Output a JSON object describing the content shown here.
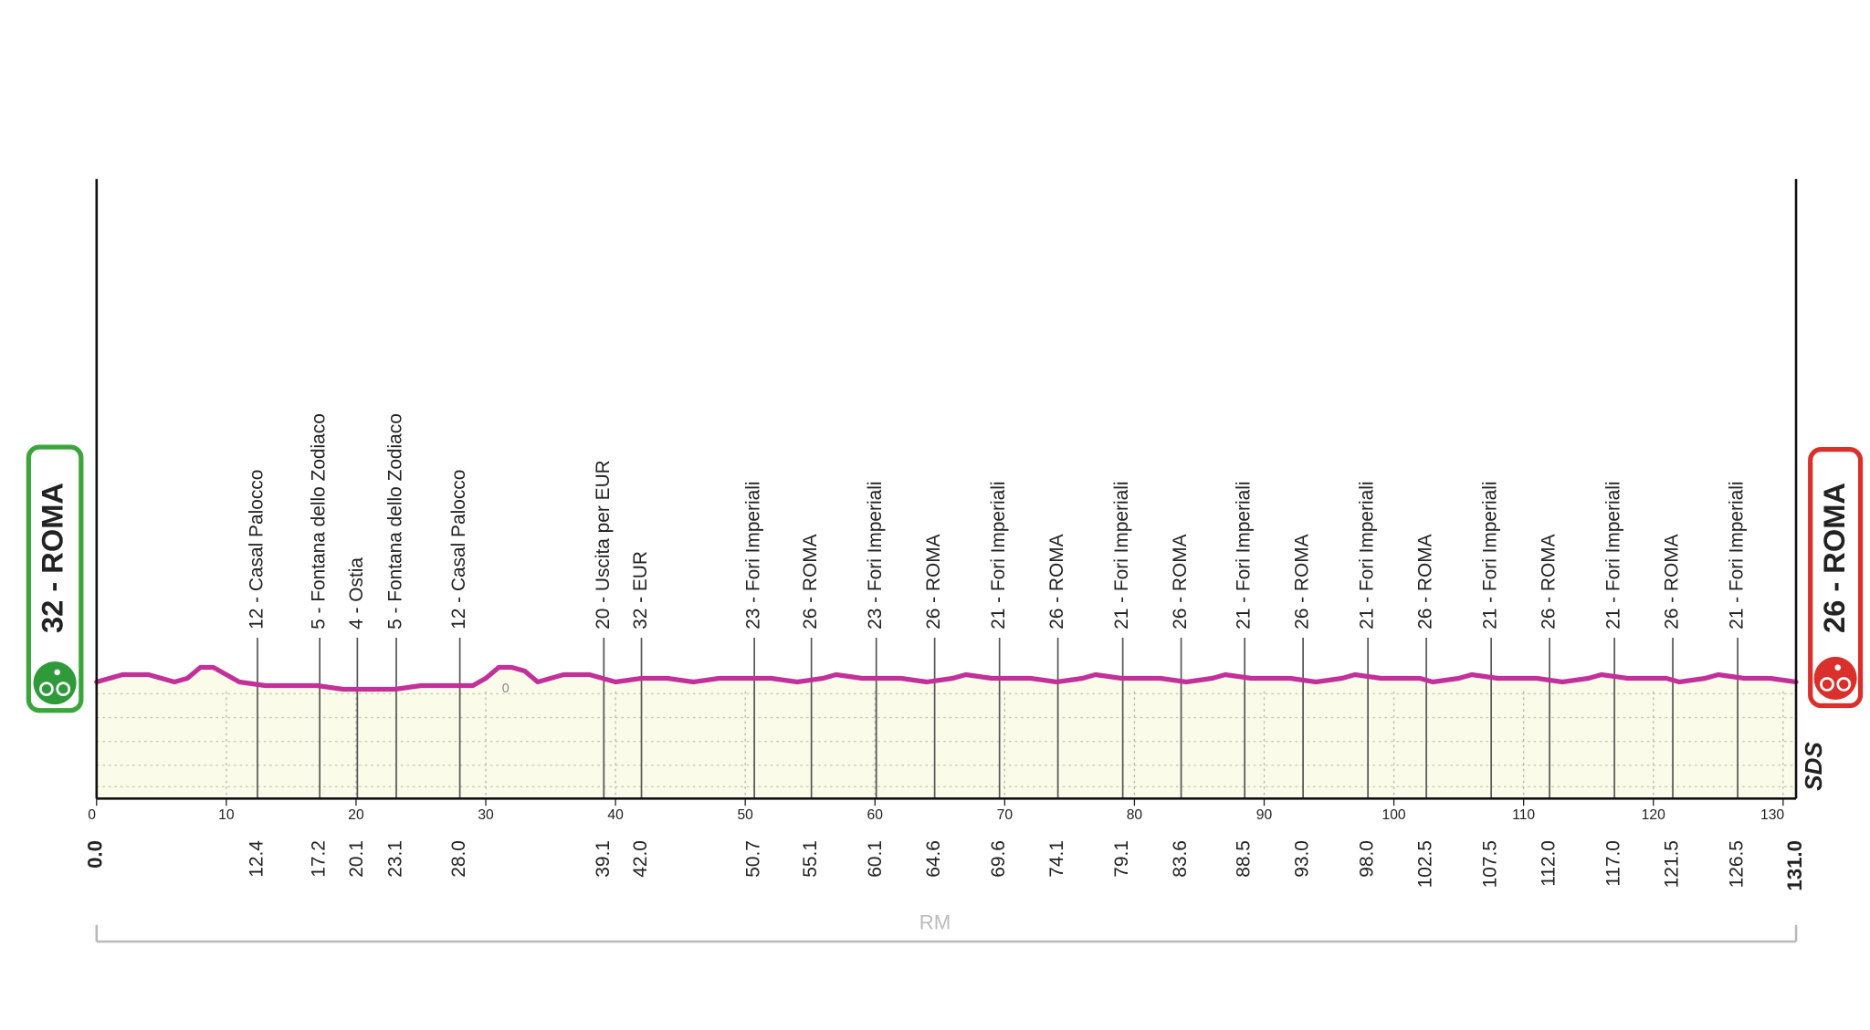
{
  "chart_data": {
    "type": "area",
    "color": "#c2309a",
    "fill_color": "#fbfbea",
    "xlim": [
      0,
      131
    ],
    "ylim": [
      0,
      170
    ],
    "xticks": [
      0,
      10,
      20,
      30,
      40,
      50,
      60,
      70,
      80,
      90,
      100,
      110,
      120,
      130
    ],
    "x": [
      0,
      2,
      4,
      6,
      7,
      8,
      9,
      10,
      11,
      13,
      15,
      17,
      19,
      21,
      23,
      25,
      27,
      29,
      30,
      31,
      32,
      33,
      34,
      35,
      36,
      38,
      39,
      40,
      42,
      44,
      46,
      48,
      50,
      52,
      54,
      56,
      57,
      59,
      62,
      64,
      66,
      67,
      69,
      72,
      74,
      76,
      77,
      79,
      82,
      84,
      86,
      87,
      89,
      92,
      94,
      96,
      97,
      99,
      102,
      103,
      105,
      106,
      108,
      111,
      113,
      115,
      116,
      118,
      121,
      122,
      124,
      125,
      127,
      129,
      131
    ],
    "values": [
      32,
      34,
      34,
      32,
      33,
      36,
      36,
      34,
      32,
      31,
      31,
      31,
      30,
      30,
      30,
      31,
      31,
      31,
      33,
      36,
      36,
      35,
      32,
      33,
      34,
      34,
      33,
      32,
      33,
      33,
      32,
      33,
      33,
      33,
      32,
      33,
      34,
      33,
      33,
      32,
      33,
      34,
      33,
      33,
      32,
      33,
      34,
      33,
      33,
      32,
      33,
      34,
      33,
      33,
      32,
      33,
      34,
      33,
      33,
      32,
      33,
      34,
      33,
      33,
      32,
      33,
      34,
      33,
      33,
      32,
      33,
      34,
      33,
      33,
      32
    ],
    "start": {
      "name": "32 - ROMA",
      "km": {
        "value": 0,
        "label": "0.0"
      }
    },
    "finish": {
      "name": "26 - ROMA",
      "km": {
        "value": 131,
        "label": "131.0"
      }
    },
    "waypoints": [
      {
        "name": "12 - Casal Palocco",
        "km": 12.4
      },
      {
        "name": "5 - Fontana dello Zodiaco",
        "km": 17.2
      },
      {
        "name": "4 - Ostia",
        "km": 20.1
      },
      {
        "name": "5 - Fontana dello Zodiaco",
        "km": 23.1
      },
      {
        "name": "12 - Casal Palocco",
        "km": {
          "value": 28,
          "label": "28.0"
        }
      },
      {
        "name": "20 - Uscita per EUR",
        "km": 39.1
      },
      {
        "name": "32 - EUR",
        "km": {
          "value": 42,
          "label": "42.0"
        }
      },
      {
        "name": "23 - Fori Imperiali",
        "km": 50.7
      },
      {
        "name": "26 - ROMA",
        "km": 55.1
      },
      {
        "name": "23 - Fori Imperiali",
        "km": 60.1
      },
      {
        "name": "26 - ROMA",
        "km": 64.6
      },
      {
        "name": "21 - Fori Imperiali",
        "km": 69.6
      },
      {
        "name": "26 - ROMA",
        "km": 74.1
      },
      {
        "name": "21 - Fori Imperiali",
        "km": 79.1
      },
      {
        "name": "26 - ROMA",
        "km": 83.6
      },
      {
        "name": "21 - Fori Imperiali",
        "km": 88.5
      },
      {
        "name": "26 - ROMA",
        "km": {
          "value": 93,
          "label": "93.0"
        }
      },
      {
        "name": "21 - Fori Imperiali",
        "km": {
          "value": 98,
          "label": "98.0"
        }
      },
      {
        "name": "26 - ROMA",
        "km": 102.5
      },
      {
        "name": "21 - Fori Imperiali",
        "km": 107.5
      },
      {
        "name": "26 - ROMA",
        "km": {
          "value": 112,
          "label": "112.0"
        }
      },
      {
        "name": "21 - Fori Imperiali",
        "km": {
          "value": 117,
          "label": "117.0"
        }
      },
      {
        "name": "26 - ROMA",
        "km": 121.5
      },
      {
        "name": "21 - Fori Imperiali",
        "km": 126.5
      }
    ],
    "annotation": "0",
    "region": "RM",
    "logo": "SDS"
  }
}
